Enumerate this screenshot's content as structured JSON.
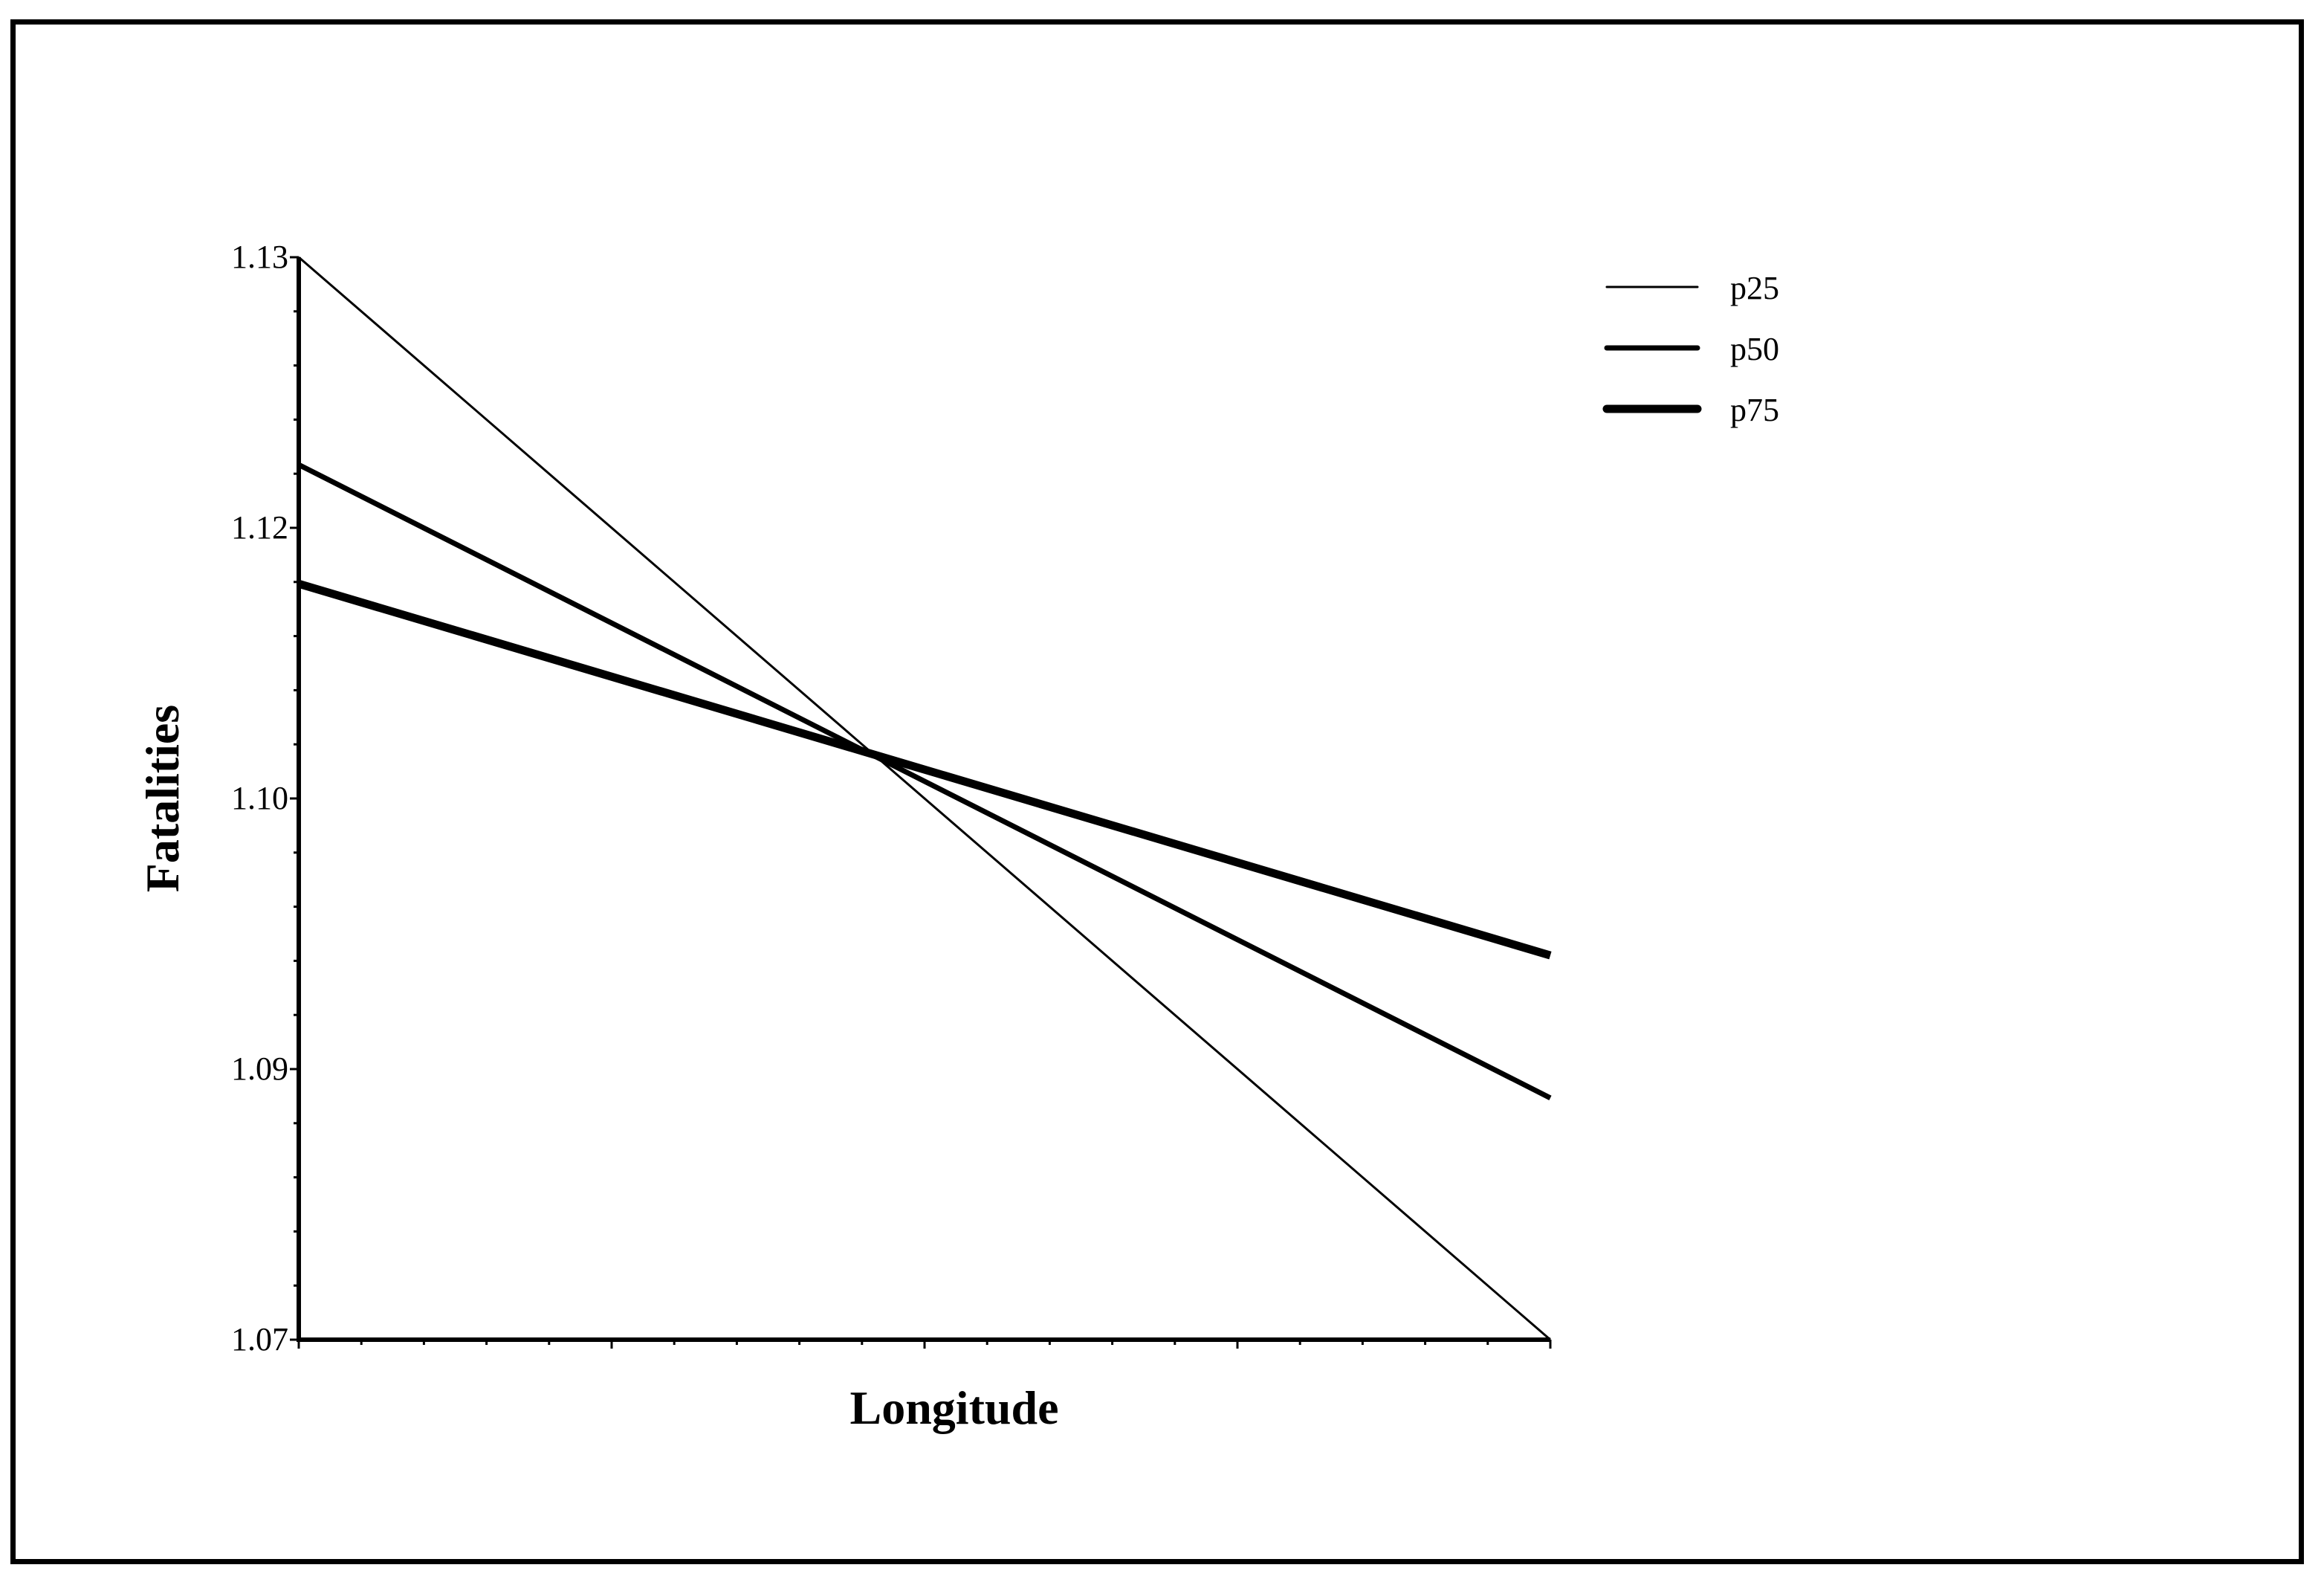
{
  "chart_data": {
    "type": "line",
    "title": "",
    "xlabel": "Longitude",
    "ylabel": "Fatalities",
    "xlim": [
      0,
      1
    ],
    "ylim": [
      1.07,
      1.13
    ],
    "x_tick_labels": [],
    "y_ticks": [
      {
        "value": 1.13,
        "label": "1.13"
      },
      {
        "value": 1.115,
        "label": "1.12"
      },
      {
        "value": 1.1,
        "label": "1.10"
      },
      {
        "value": 1.085,
        "label": "1.09"
      },
      {
        "value": 1.07,
        "label": "1.07"
      }
    ],
    "grid": false,
    "legend_position": "top-right",
    "series": [
      {
        "name": "p25",
        "x": [
          0,
          1
        ],
        "y": [
          1.13,
          1.07
        ],
        "line_weight": "thin"
      },
      {
        "name": "p50",
        "x": [
          0,
          1
        ],
        "y": [
          1.1185,
          1.0834
        ],
        "line_weight": "medium"
      },
      {
        "name": "p75",
        "x": [
          0,
          1
        ],
        "y": [
          1.1119,
          1.0913
        ],
        "line_weight": "thick"
      }
    ]
  }
}
